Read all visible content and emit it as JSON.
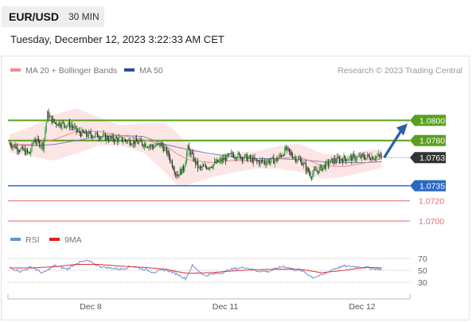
{
  "header": {
    "pair": "EUR/USD",
    "timeframe": "30 MIN"
  },
  "timestamp": "Tuesday, December 12, 2023 3:22:33 AM CET",
  "legend": {
    "ma20_label": "MA 20 + Bollinger Bands",
    "ma50_label": "MA 50",
    "rsi_label": "RSI",
    "ma9_label": "9MA"
  },
  "credit": "Research © 2023 Trading Central",
  "colors": {
    "resistance": "#5aa01e",
    "support": "#2a68c4",
    "pivot_line": "#e56a6a",
    "current_price": "#333333",
    "ma20": "#f28c8c",
    "bollinger_band": "#fbdcdc",
    "ma50": "#7f7fb6",
    "candle_up": "#3a9a3a",
    "candle_down": "#333333",
    "rsi": "#6a8ed8",
    "ma9": "#e03030",
    "arrow": "#2c5fa5"
  },
  "chart_data": [
    {
      "type": "candlestick",
      "instrument": "EUR/USD",
      "interval": "30 MIN",
      "x_tick_labels": [
        "Dec 8",
        "Dec 11",
        "Dec 12"
      ],
      "ylim": [
        1.0696,
        1.0843
      ],
      "key_levels": [
        {
          "label": "1.0800",
          "value": 1.08,
          "type": "resistance"
        },
        {
          "label": "1.0780",
          "value": 1.078,
          "type": "resistance"
        },
        {
          "label": "1.0763",
          "value": 1.0763,
          "type": "current_price"
        },
        {
          "label": "1.0735",
          "value": 1.0735,
          "type": "support"
        },
        {
          "label": "1.0720",
          "value": 1.072,
          "type": "pivot"
        },
        {
          "label": "1.0700",
          "value": 1.07,
          "type": "pivot"
        }
      ],
      "outlook": {
        "target": 1.08,
        "direction": "up"
      },
      "close_path": {
        "x": [
          0,
          10,
          18,
          22,
          30,
          34,
          40,
          45,
          55,
          62,
          70,
          80,
          90,
          100,
          110,
          120,
          128,
          136,
          142,
          150,
          156,
          160,
          170,
          180,
          190,
          200,
          212,
          222,
          230,
          240,
          248,
          256,
          262,
          270,
          280,
          290,
          300,
          312,
          322,
          334
        ],
        "y": [
          1.0777,
          1.0771,
          1.0767,
          1.0781,
          1.0775,
          1.0806,
          1.0798,
          1.0797,
          1.0795,
          1.0788,
          1.0786,
          1.0785,
          1.0782,
          1.0781,
          1.0779,
          1.0777,
          1.0774,
          1.0776,
          1.0767,
          1.0746,
          1.0752,
          1.0772,
          1.0752,
          1.0755,
          1.076,
          1.0766,
          1.0763,
          1.0759,
          1.0759,
          1.0761,
          1.0771,
          1.0763,
          1.0759,
          1.0746,
          1.0753,
          1.076,
          1.0762,
          1.0763,
          1.0764,
          1.0764
        ]
      },
      "ma20": {
        "x": [
          0,
          20,
          40,
          60,
          80,
          100,
          120,
          140,
          150,
          160,
          180,
          200,
          220,
          240,
          260,
          280,
          300,
          320,
          334
        ],
        "y": [
          1.0776,
          1.0776,
          1.0781,
          1.0789,
          1.0789,
          1.0785,
          1.0781,
          1.0775,
          1.0767,
          1.0761,
          1.0758,
          1.076,
          1.076,
          1.0762,
          1.0764,
          1.0755,
          1.0754,
          1.0758,
          1.0762
        ]
      },
      "ma50": {
        "x": [
          0,
          20,
          40,
          60,
          80,
          100,
          120,
          140,
          160,
          180,
          200,
          220,
          240,
          260,
          280,
          300,
          320,
          334
        ],
        "y": [
          1.0776,
          1.0775,
          1.0776,
          1.078,
          1.0784,
          1.0785,
          1.0784,
          1.0776,
          1.0771,
          1.0767,
          1.0764,
          1.0762,
          1.0762,
          1.0761,
          1.0759,
          1.0758,
          1.0758,
          1.0759
        ]
      },
      "bollinger_upper": {
        "x": [
          0,
          20,
          40,
          60,
          80,
          100,
          120,
          140,
          150,
          160,
          180,
          200,
          220,
          240,
          260,
          280,
          300,
          320,
          334
        ],
        "y": [
          1.0786,
          1.0794,
          1.0806,
          1.0812,
          1.0803,
          1.0795,
          1.0797,
          1.0797,
          1.0788,
          1.0775,
          1.0765,
          1.0768,
          1.0769,
          1.0774,
          1.0777,
          1.0767,
          1.0765,
          1.077,
          1.0772
        ]
      },
      "bollinger_lower": {
        "x": [
          0,
          20,
          40,
          60,
          80,
          100,
          120,
          140,
          150,
          160,
          180,
          200,
          220,
          240,
          260,
          280,
          300,
          320,
          334
        ],
        "y": [
          1.0768,
          1.0764,
          1.076,
          1.0767,
          1.0775,
          1.0775,
          1.0768,
          1.0748,
          1.0736,
          1.0736,
          1.0743,
          1.0748,
          1.0752,
          1.0752,
          1.0749,
          1.0742,
          1.0744,
          1.0749,
          1.0753
        ]
      }
    },
    {
      "type": "line",
      "title": "RSI",
      "y_tick_labels": [
        "70",
        "50",
        "30"
      ],
      "y_ticks": [
        70,
        50,
        30
      ],
      "ylim": [
        10,
        90
      ],
      "series": [
        {
          "name": "RSI",
          "x": [
            0,
            10,
            20,
            30,
            40,
            52,
            60,
            70,
            80,
            90,
            100,
            110,
            120,
            130,
            140,
            150,
            158,
            164,
            175,
            190,
            200,
            212,
            222,
            232,
            246,
            256,
            264,
            272,
            282,
            290,
            300,
            315,
            330
          ],
          "y": [
            55,
            48,
            56,
            45,
            58,
            52,
            62,
            66,
            57,
            54,
            52,
            57,
            52,
            47,
            51,
            44,
            36,
            58,
            41,
            46,
            52,
            55,
            49,
            48,
            57,
            51,
            48,
            38,
            43,
            52,
            57,
            56,
            52
          ]
        },
        {
          "name": "9MA",
          "x": [
            0,
            20,
            40,
            60,
            80,
            100,
            120,
            140,
            150,
            160,
            180,
            200,
            220,
            240,
            260,
            280,
            300,
            320,
            334
          ],
          "y": [
            54,
            54,
            56,
            60,
            60,
            57,
            55,
            52,
            48,
            45,
            46,
            49,
            51,
            52,
            52,
            46,
            50,
            55,
            54
          ]
        }
      ]
    }
  ]
}
